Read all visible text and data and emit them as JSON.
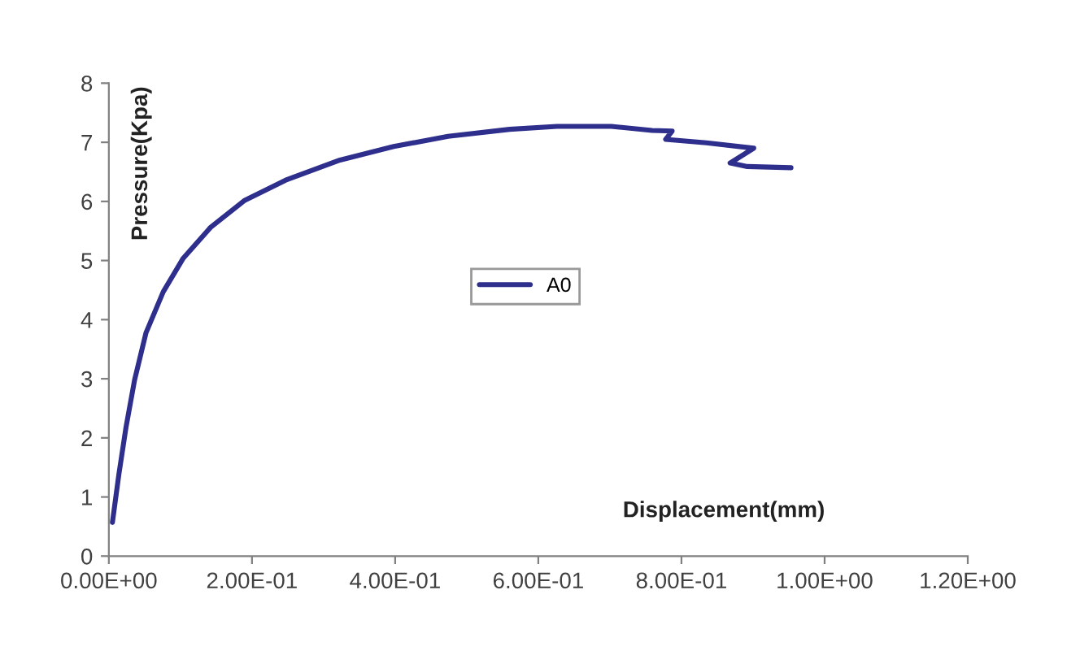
{
  "chart_data": {
    "type": "line",
    "xlabel": "Displacement(mm)",
    "ylabel": "Pressure(Kpa)",
    "xlim": [
      0,
      1.2
    ],
    "ylim": [
      0,
      8
    ],
    "xticks": [
      {
        "value": 0,
        "label": "0.00E+00"
      },
      {
        "value": 0.2,
        "label": "2.00E-01"
      },
      {
        "value": 0.4,
        "label": "4.00E-01"
      },
      {
        "value": 0.6,
        "label": "6.00E-01"
      },
      {
        "value": 0.8,
        "label": "8.00E-01"
      },
      {
        "value": 1.0,
        "label": "1.00E+00"
      },
      {
        "value": 1.2,
        "label": "1.20E+00"
      }
    ],
    "yticks": [
      0,
      1,
      2,
      3,
      4,
      5,
      6,
      7,
      8
    ],
    "grid": false,
    "legend": "center",
    "marker": "none",
    "line_style": "solid",
    "series": [
      {
        "name": "A0",
        "color": "#2e2e8c",
        "x": [
          0.005,
          0.014,
          0.024,
          0.036,
          0.052,
          0.076,
          0.104,
          0.142,
          0.19,
          0.247,
          0.323,
          0.398,
          0.474,
          0.56,
          0.626,
          0.702,
          0.759,
          0.787,
          0.778,
          0.835,
          0.901,
          0.868,
          0.892,
          0.953
        ],
        "values": [
          0.57,
          1.38,
          2.18,
          2.98,
          3.78,
          4.47,
          5.04,
          5.56,
          6.02,
          6.36,
          6.7,
          6.93,
          7.1,
          7.22,
          7.27,
          7.27,
          7.2,
          7.19,
          7.05,
          6.99,
          6.9,
          6.65,
          6.59,
          6.57
        ]
      }
    ]
  }
}
